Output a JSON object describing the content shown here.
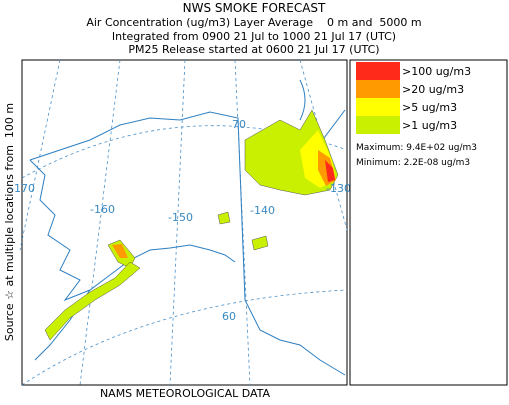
{
  "header": {
    "title": "NWS SMOKE FORECAST",
    "lines": [
      "Air Concentration (ug/m3) Layer Average    0 m and  5000 m",
      "Integrated from 0900 21 Jul to 1000 21 Jul 17 (UTC)",
      "PM25 Release started at 0600 21 Jul 17 (UTC)"
    ]
  },
  "side_label": "Source ☆ at multiple locations from  100 m",
  "footer": "NAMS METEOROLOGICAL DATA",
  "legend": [
    {
      "label": ">100 ug/m3",
      "color": "#ff2a1a"
    },
    {
      "label": ">20 ug/m3",
      "color": "#ff9a00"
    },
    {
      "label": ">5 ug/m3",
      "color": "#ffff00"
    },
    {
      "label": ">1 ug/m3",
      "color": "#c8f000"
    }
  ],
  "stats": [
    "Maximum: 9.4E+02 ug/m3",
    "Minimum: 2.2E-08 ug/m3"
  ],
  "map_labels": [
    "-170",
    "-160",
    "-150",
    "-140",
    "-130",
    "70",
    "60"
  ]
}
